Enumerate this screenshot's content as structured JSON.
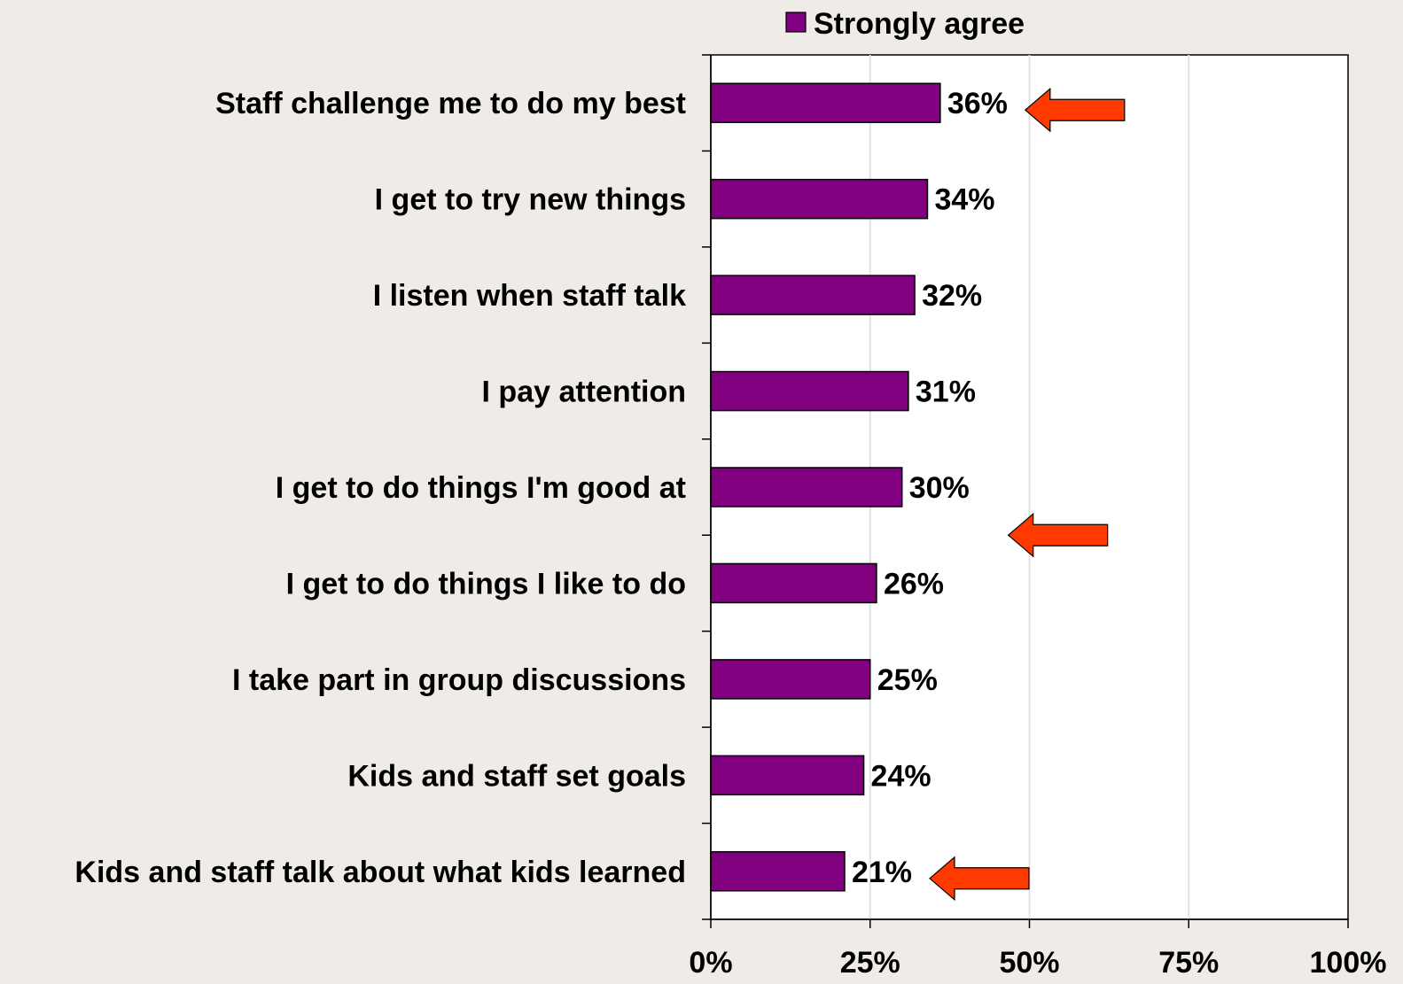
{
  "chart_data": {
    "type": "bar",
    "orientation": "horizontal",
    "categories": [
      "Staff challenge me to do my best",
      "I get to try new things",
      "I listen when staff talk",
      "I pay attention",
      "I get to do things I'm good at",
      "I get to do things I like to do",
      "I take part in group discussions",
      "Kids and staff set goals",
      "Kids and staff talk about what kids learned"
    ],
    "series": [
      {
        "name": "Strongly agree",
        "values": [
          36,
          34,
          32,
          31,
          30,
          26,
          25,
          24,
          21
        ]
      }
    ],
    "value_labels": [
      "36%",
      "34%",
      "32%",
      "31%",
      "30%",
      "26%",
      "25%",
      "24%",
      "21%"
    ],
    "xlim": [
      0,
      100
    ],
    "x_ticks": [
      0,
      25,
      50,
      75,
      100
    ],
    "x_tick_labels": [
      "0%",
      "25%",
      "50%",
      "75%",
      "100%"
    ],
    "grid": "vertical",
    "legend": "top",
    "colors": {
      "bar": "#800080",
      "arrow": "#ff3a00",
      "background": "#efece8",
      "plot_background": "#ffffff"
    },
    "annotations": [
      {
        "type": "left-arrow",
        "near_category": 0
      },
      {
        "type": "left-arrow",
        "between_categories": [
          4,
          5
        ]
      },
      {
        "type": "left-arrow",
        "near_category": 8
      }
    ]
  }
}
